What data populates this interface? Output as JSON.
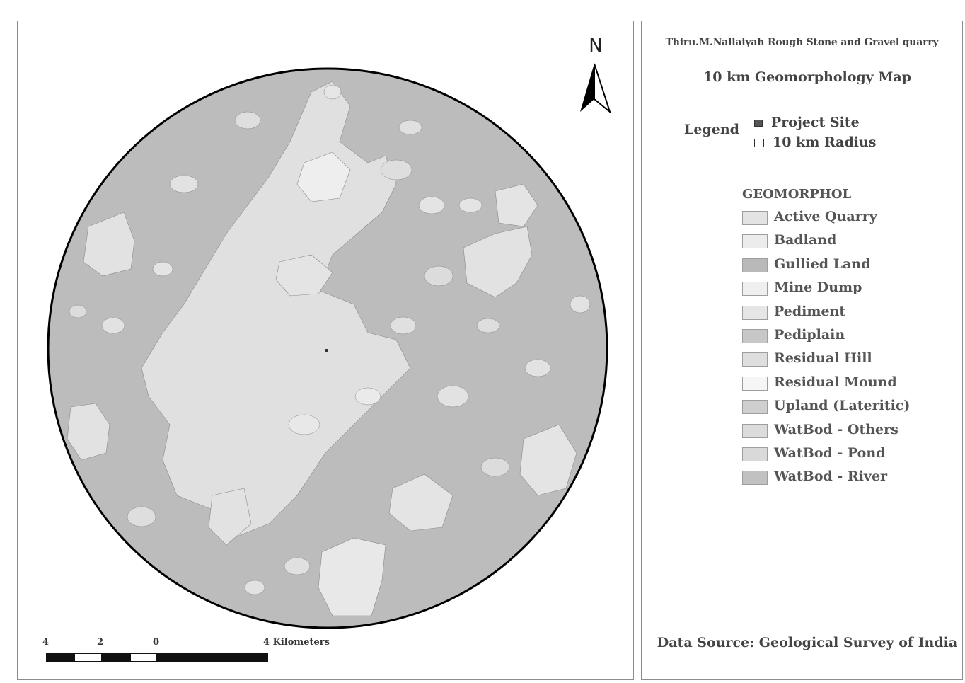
{
  "map": {
    "title_small": "Thiru.M.Nallaiyah Rough Stone and Gravel quarry",
    "title_main": "10 km Geomorphology Map",
    "north_label": "N",
    "scale_labels": [
      "4",
      "2",
      "0",
      "4 Kilometers"
    ],
    "data_source": "Data Source: Geological Survey of India",
    "legend": {
      "heading": "Legend",
      "project_site": "Project Site",
      "radius": "10 km Radius"
    },
    "layer": {
      "title": "GEOMORPHOL",
      "classes": [
        {
          "label": "Active Quarry",
          "color": "#e3e3e3"
        },
        {
          "label": "Badland",
          "color": "#ececec"
        },
        {
          "label": "Gullied Land",
          "color": "#b9b9b9"
        },
        {
          "label": "Mine Dump",
          "color": "#efefef"
        },
        {
          "label": "Pediment",
          "color": "#e6e6e6"
        },
        {
          "label": "Pediplain",
          "color": "#c7c7c7"
        },
        {
          "label": "Residual Hill",
          "color": "#dedede"
        },
        {
          "label": "Residual Mound",
          "color": "#f6f6f6"
        },
        {
          "label": "Upland (Lateritic)",
          "color": "#cfcfcf"
        },
        {
          "label": "WatBod - Others",
          "color": "#dcdcdc"
        },
        {
          "label": "WatBod - Pond",
          "color": "#d9d9d9"
        },
        {
          "label": "WatBod - River",
          "color": "#c1c1c1"
        }
      ]
    },
    "colors": {
      "base_fill": "#bcbcbc",
      "light_fill": "#e2e2e2",
      "lighter_fill": "#ececec",
      "outline": "#000000"
    }
  }
}
